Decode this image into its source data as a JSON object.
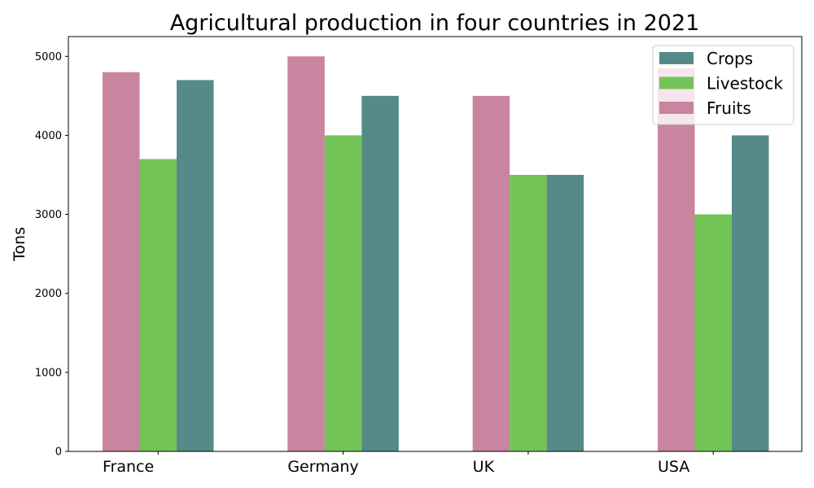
{
  "chart_data": {
    "type": "bar",
    "title": "Agricultural production in four countries in 2021",
    "xlabel": "",
    "ylabel": "Tons",
    "categories": [
      "France",
      "Germany",
      "UK",
      "USA"
    ],
    "series": [
      {
        "name": "Fruits",
        "values": [
          4800,
          5000,
          4500,
          4850
        ],
        "color": "#c9849f"
      },
      {
        "name": "Livestock",
        "values": [
          3700,
          4000,
          3500,
          3000
        ],
        "color": "#73c456"
      },
      {
        "name": "Crops",
        "values": [
          4700,
          4500,
          3500,
          4000
        ],
        "color": "#558a89"
      }
    ],
    "ylim": [
      0,
      5250
    ],
    "yticks": [
      0,
      1000,
      2000,
      3000,
      4000,
      5000
    ],
    "grid": false,
    "legend": {
      "placement": "top-right",
      "order": [
        "Crops",
        "Livestock",
        "Fruits"
      ]
    }
  }
}
